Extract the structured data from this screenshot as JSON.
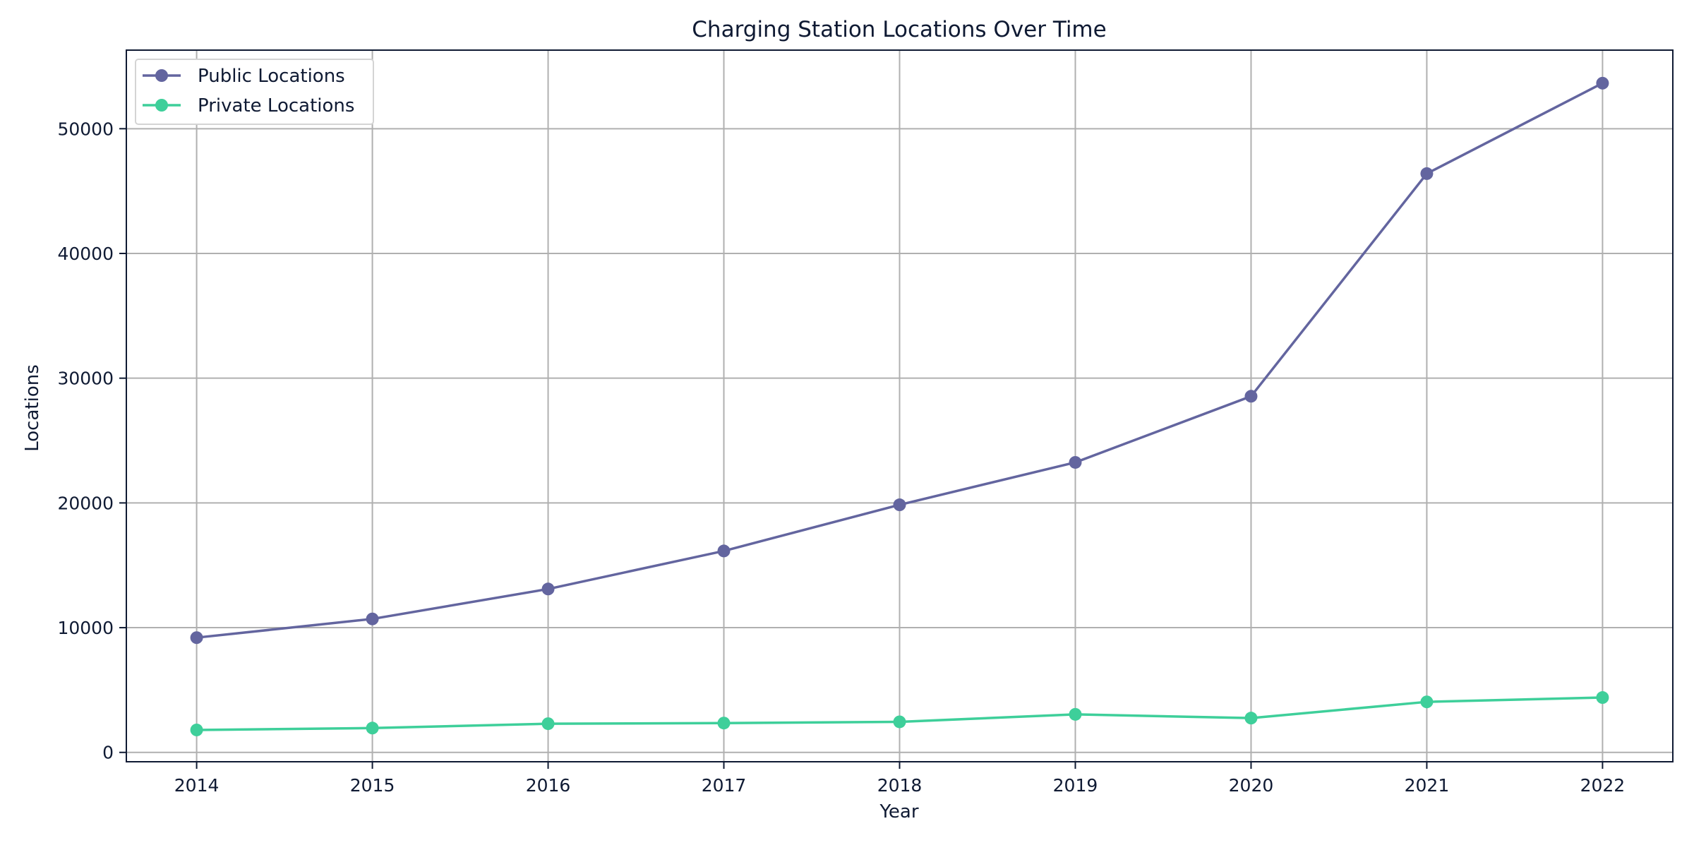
{
  "chart_data": {
    "type": "line",
    "title": "Charging Station Locations Over Time",
    "xlabel": "Year",
    "ylabel": "Locations",
    "x": [
      2014,
      2015,
      2016,
      2017,
      2018,
      2019,
      2020,
      2021,
      2022
    ],
    "x_tick_labels": [
      "2014",
      "2015",
      "2016",
      "2017",
      "2018",
      "2019",
      "2020",
      "2021",
      "2022"
    ],
    "xlim": [
      2013.6,
      2022.4
    ],
    "ylim": [
      -750,
      56300
    ],
    "y_ticks": [
      0,
      10000,
      20000,
      30000,
      40000,
      50000
    ],
    "y_tick_labels": [
      "0",
      "10000",
      "20000",
      "30000",
      "40000",
      "50000"
    ],
    "grid": true,
    "legend_position": "top-left",
    "series": [
      {
        "name": "Public Locations",
        "color": "#63659f",
        "marker": "circle",
        "values": [
          9200,
          10700,
          13100,
          16150,
          19850,
          23250,
          28550,
          46400,
          53650
        ]
      },
      {
        "name": "Private Locations",
        "color": "#3ecf9a",
        "marker": "circle",
        "values": [
          1800,
          1950,
          2300,
          2350,
          2450,
          3050,
          2750,
          4050,
          4400
        ]
      }
    ]
  }
}
